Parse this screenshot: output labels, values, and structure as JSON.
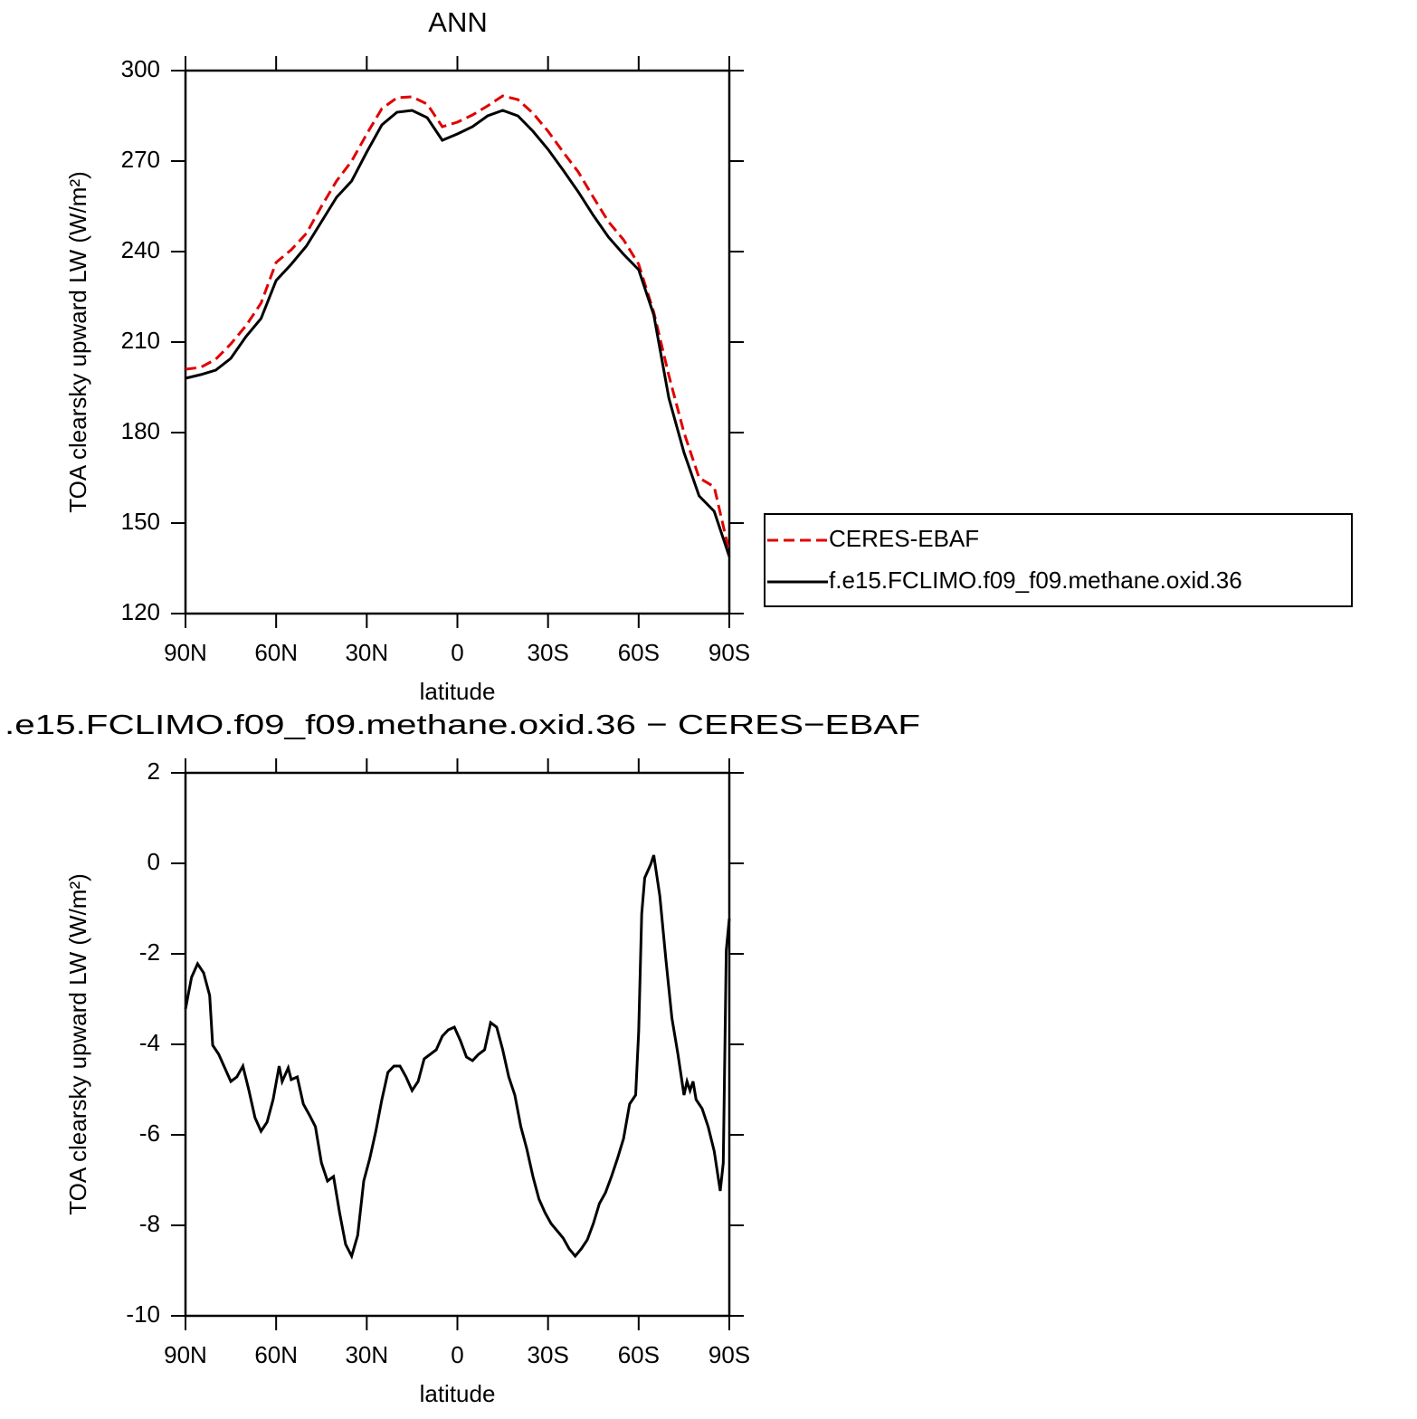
{
  "chart_data": [
    {
      "type": "line",
      "title": "ANN",
      "xlabel": "latitude",
      "ylabel": "TOA clearsky upward LW (W/m²)",
      "x": [
        90,
        85,
        80,
        75,
        70,
        65,
        60,
        55,
        50,
        45,
        40,
        35,
        30,
        25,
        20,
        15,
        10,
        5,
        0,
        -5,
        -10,
        -15,
        -20,
        -25,
        -30,
        -35,
        -40,
        -45,
        -50,
        -55,
        -60,
        -65,
        -70,
        -75,
        -80,
        -85,
        -90
      ],
      "series": [
        {
          "name": "CERES-EBAF",
          "color": "#e00000",
          "linestyle": "dashed",
          "values": [
            201,
            201.6,
            204.3,
            209.4,
            215.4,
            222.9,
            236.4,
            240.6,
            246,
            255,
            263.4,
            270,
            279,
            287.4,
            291,
            291.3,
            288.9,
            281.4,
            282.9,
            285.3,
            288.3,
            291.6,
            290.4,
            285.9,
            279.9,
            273,
            266.4,
            258,
            249.9,
            243.9,
            235.8,
            219.9,
            198.9,
            180,
            165,
            162,
            140.4
          ]
        },
        {
          "name": "f.e15.FCLIMO.f09_f09.methane.oxid.36",
          "color": "#000000",
          "linestyle": "solid",
          "values": [
            198,
            199.2,
            200.7,
            204.6,
            211.8,
            217.8,
            230.4,
            235.8,
            241.8,
            249.9,
            258,
            263.4,
            273,
            282,
            286.2,
            286.8,
            284.4,
            276.9,
            279,
            281.4,
            285,
            286.8,
            285,
            279.9,
            273.9,
            267,
            259.8,
            252,
            244.8,
            239.1,
            234,
            219,
            191.4,
            173.4,
            159,
            153.9,
            138.9
          ]
        }
      ],
      "xlim": [
        90,
        -90
      ],
      "xticks": [
        {
          "value": 90,
          "label": "90N"
        },
        {
          "value": 60,
          "label": "60N"
        },
        {
          "value": 30,
          "label": "30N"
        },
        0,
        {
          "value": -30,
          "label": "30S"
        },
        {
          "value": -60,
          "label": "60S"
        },
        {
          "value": -90,
          "label": "90S"
        }
      ],
      "ylim": [
        120,
        300
      ],
      "yticks": [
        120,
        150,
        180,
        210,
        240,
        270,
        300
      ]
    },
    {
      "type": "line",
      "title": ".e15.FCLIMO.f09_f09.methane.oxid.36 − CERES−EBAF",
      "xlabel": "latitude",
      "ylabel": "TOA clearsky upward LW (W/m²)",
      "x": [
        90,
        88,
        86,
        84,
        82,
        81,
        79,
        75,
        73,
        71,
        69,
        67,
        65,
        63,
        61,
        59,
        58,
        56,
        55,
        53,
        51,
        49,
        47,
        45,
        43,
        41,
        39,
        37,
        35,
        33,
        31,
        29,
        27,
        25,
        23,
        21,
        19,
        17,
        15,
        13,
        11,
        9,
        7,
        5,
        3,
        1,
        -1,
        -3,
        -5,
        -7,
        -9,
        -11,
        -13,
        -15,
        -17,
        -19,
        -21,
        -23,
        -25,
        -27,
        -29,
        -31,
        -33,
        -35,
        -37,
        -39,
        -41,
        -43,
        -45,
        -47,
        -49,
        -51,
        -53,
        -55,
        -57,
        -59,
        -60,
        -61,
        -62,
        -64,
        -65,
        -67,
        -69,
        -71,
        -73,
        -75,
        -76,
        -77,
        -78,
        -79,
        -81,
        -83,
        -85,
        -87,
        -88,
        -89,
        -90
      ],
      "values": [
        -3.22,
        -2.52,
        -2.22,
        -2.42,
        -2.92,
        -4.02,
        -4.22,
        -4.82,
        -4.72,
        -4.48,
        -5.02,
        -5.62,
        -5.92,
        -5.72,
        -5.22,
        -4.48,
        -4.82,
        -4.52,
        -4.78,
        -4.72,
        -5.32,
        -5.56,
        -5.82,
        -6.62,
        -7.02,
        -6.92,
        -7.72,
        -8.42,
        -8.68,
        -8.22,
        -7.02,
        -6.52,
        -5.92,
        -5.22,
        -4.62,
        -4.48,
        -4.48,
        -4.72,
        -5.02,
        -4.82,
        -4.32,
        -4.22,
        -4.12,
        -3.82,
        -3.68,
        -3.62,
        -3.92,
        -4.28,
        -4.36,
        -4.22,
        -4.12,
        -3.52,
        -3.62,
        -4.12,
        -4.72,
        -5.12,
        -5.82,
        -6.32,
        -6.92,
        -7.42,
        -7.72,
        -7.96,
        -8.12,
        -8.28,
        -8.52,
        -8.68,
        -8.52,
        -8.32,
        -7.96,
        -7.52,
        -7.28,
        -6.92,
        -6.52,
        -6.08,
        -5.32,
        -5.12,
        -3.72,
        -1.12,
        -0.32,
        -0.02,
        0.18,
        -0.72,
        -2.12,
        -3.42,
        -4.22,
        -5.12,
        -4.82,
        -5.02,
        -4.82,
        -5.22,
        -5.42,
        -5.82,
        -6.36,
        -7.24,
        -6.62,
        -1.92,
        -1.22
      ],
      "color": "#000000",
      "linestyle": "solid",
      "xlim": [
        90,
        -90
      ],
      "xticks": [
        {
          "value": 90,
          "label": "90N"
        },
        {
          "value": 60,
          "label": "60N"
        },
        {
          "value": 30,
          "label": "30N"
        },
        0,
        {
          "value": -30,
          "label": "30S"
        },
        {
          "value": -60,
          "label": "60S"
        },
        {
          "value": -90,
          "label": "90S"
        }
      ],
      "ylim": [
        -10,
        2
      ],
      "yticks": [
        -10,
        -8,
        -6,
        -4,
        -2,
        0,
        2
      ]
    }
  ]
}
